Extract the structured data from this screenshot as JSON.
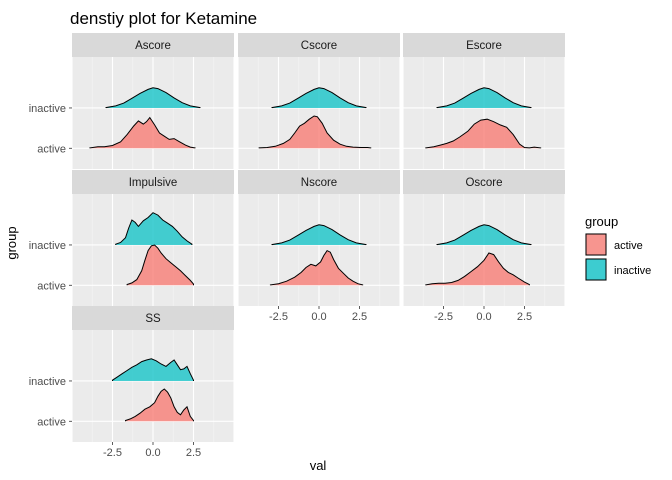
{
  "chart_data": {
    "type": "ridgeline",
    "title": "denstiy plot for Ketamine",
    "xlabel": "val",
    "ylabel": "group",
    "x_ticks": [
      -2.5,
      0,
      2.5
    ],
    "x_tick_labels": [
      "-2.5",
      "0.0",
      "2.5"
    ],
    "y_categories": [
      "active",
      "inactive"
    ],
    "xlim": [
      -5,
      5
    ],
    "grid": true,
    "legend": {
      "title": "group",
      "position": "right",
      "entries": [
        {
          "label": "active",
          "color": "#F8766D"
        },
        {
          "label": "inactive",
          "color": "#00BFC4"
        }
      ]
    },
    "facets": [
      {
        "name": "Ascore",
        "series": [
          {
            "group": "inactive",
            "x": [
              -2.9,
              -2.3,
              -1.8,
              -1.3,
              -0.8,
              -0.3,
              0.0,
              0.3,
              0.8,
              1.3,
              1.8,
              2.3,
              2.9
            ],
            "density": [
              0.01,
              0.05,
              0.12,
              0.24,
              0.36,
              0.46,
              0.5,
              0.48,
              0.38,
              0.25,
              0.13,
              0.05,
              0.01
            ]
          },
          {
            "group": "active",
            "x": [
              -3.9,
              -3.4,
              -3.0,
              -2.5,
              -2.0,
              -1.6,
              -1.2,
              -0.9,
              -0.6,
              -0.4,
              -0.2,
              0.1,
              0.4,
              0.7,
              1.0,
              1.3,
              1.6,
              2.0,
              2.3,
              2.6
            ],
            "density": [
              0.01,
              0.04,
              0.04,
              0.07,
              0.16,
              0.34,
              0.55,
              0.68,
              0.6,
              0.66,
              0.76,
              0.58,
              0.38,
              0.3,
              0.22,
              0.24,
              0.17,
              0.08,
              0.03,
              0.01
            ]
          }
        ]
      },
      {
        "name": "Cscore",
        "series": [
          {
            "group": "inactive",
            "x": [
              -2.9,
              -2.3,
              -1.8,
              -1.3,
              -0.8,
              -0.3,
              0.0,
              0.3,
              0.8,
              1.3,
              1.8,
              2.3,
              2.9
            ],
            "density": [
              0.01,
              0.05,
              0.12,
              0.24,
              0.36,
              0.46,
              0.5,
              0.48,
              0.38,
              0.25,
              0.13,
              0.05,
              0.01
            ]
          },
          {
            "group": "active",
            "x": [
              -3.7,
              -3.2,
              -2.7,
              -2.2,
              -1.8,
              -1.5,
              -1.2,
              -0.9,
              -0.6,
              -0.3,
              -0.1,
              0.2,
              0.5,
              0.9,
              1.3,
              1.7,
              2.1,
              2.6,
              3.0,
              3.2
            ],
            "density": [
              0.01,
              0.02,
              0.05,
              0.12,
              0.22,
              0.38,
              0.55,
              0.62,
              0.72,
              0.8,
              0.78,
              0.62,
              0.38,
              0.2,
              0.1,
              0.05,
              0.03,
              0.02,
              0.02,
              0.01
            ]
          }
        ]
      },
      {
        "name": "Escore",
        "series": [
          {
            "group": "inactive",
            "x": [
              -2.9,
              -2.3,
              -1.8,
              -1.3,
              -0.8,
              -0.3,
              0.0,
              0.3,
              0.8,
              1.3,
              1.8,
              2.3,
              2.9
            ],
            "density": [
              0.01,
              0.05,
              0.12,
              0.24,
              0.36,
              0.46,
              0.5,
              0.48,
              0.38,
              0.25,
              0.13,
              0.05,
              0.01
            ]
          },
          {
            "group": "active",
            "x": [
              -3.6,
              -3.1,
              -2.7,
              -2.3,
              -1.9,
              -1.5,
              -1.0,
              -0.6,
              -0.2,
              0.2,
              0.6,
              1.0,
              1.4,
              1.8,
              2.2,
              2.5,
              2.8,
              3.1,
              3.5
            ],
            "density": [
              0.01,
              0.04,
              0.08,
              0.12,
              0.18,
              0.28,
              0.42,
              0.6,
              0.7,
              0.72,
              0.66,
              0.58,
              0.52,
              0.34,
              0.1,
              0.02,
              0.01,
              0.03,
              0.01
            ]
          }
        ]
      },
      {
        "name": "Impulsive",
        "series": [
          {
            "group": "inactive",
            "x": [
              -2.3,
              -2.0,
              -1.7,
              -1.5,
              -1.3,
              -1.1,
              -0.9,
              -0.6,
              -0.3,
              0.0,
              0.3,
              0.6,
              0.9,
              1.2,
              1.5,
              1.8,
              2.1,
              2.4
            ],
            "density": [
              0.02,
              0.06,
              0.18,
              0.42,
              0.62,
              0.56,
              0.46,
              0.6,
              0.68,
              0.8,
              0.74,
              0.62,
              0.54,
              0.46,
              0.34,
              0.2,
              0.1,
              0.02
            ]
          },
          {
            "group": "active",
            "x": [
              -1.6,
              -1.3,
              -1.0,
              -0.7,
              -0.5,
              -0.3,
              -0.1,
              0.1,
              0.3,
              0.5,
              0.8,
              1.1,
              1.4,
              1.7,
              2.0,
              2.3,
              2.5
            ],
            "density": [
              0.02,
              0.06,
              0.14,
              0.36,
              0.62,
              0.86,
              0.98,
              1.0,
              0.92,
              0.8,
              0.66,
              0.56,
              0.46,
              0.36,
              0.24,
              0.12,
              0.03
            ]
          }
        ]
      },
      {
        "name": "Nscore",
        "series": [
          {
            "group": "inactive",
            "x": [
              -2.9,
              -2.3,
              -1.8,
              -1.3,
              -0.8,
              -0.3,
              0.0,
              0.3,
              0.8,
              1.3,
              1.8,
              2.3,
              2.9
            ],
            "density": [
              0.01,
              0.05,
              0.12,
              0.24,
              0.36,
              0.46,
              0.5,
              0.48,
              0.38,
              0.25,
              0.13,
              0.05,
              0.01
            ]
          },
          {
            "group": "active",
            "x": [
              -3.0,
              -2.5,
              -2.0,
              -1.5,
              -1.1,
              -0.8,
              -0.5,
              -0.2,
              0.1,
              0.3,
              0.5,
              0.7,
              0.9,
              1.2,
              1.5,
              1.8,
              2.1,
              2.4,
              2.7
            ],
            "density": [
              0.01,
              0.04,
              0.1,
              0.2,
              0.32,
              0.44,
              0.52,
              0.48,
              0.58,
              0.74,
              0.86,
              0.82,
              0.64,
              0.42,
              0.3,
              0.18,
              0.1,
              0.04,
              0.01
            ]
          }
        ]
      },
      {
        "name": "Oscore",
        "series": [
          {
            "group": "inactive",
            "x": [
              -2.9,
              -2.3,
              -1.8,
              -1.3,
              -0.8,
              -0.3,
              0.0,
              0.3,
              0.8,
              1.3,
              1.8,
              2.3,
              2.9
            ],
            "density": [
              0.01,
              0.05,
              0.12,
              0.24,
              0.36,
              0.46,
              0.5,
              0.48,
              0.38,
              0.25,
              0.13,
              0.05,
              0.01
            ]
          },
          {
            "group": "active",
            "x": [
              -3.6,
              -3.2,
              -2.8,
              -2.4,
              -2.0,
              -1.6,
              -1.2,
              -0.8,
              -0.4,
              0.0,
              0.3,
              0.6,
              0.9,
              1.2,
              1.5,
              1.8,
              2.1,
              2.5,
              2.8
            ],
            "density": [
              0.01,
              0.04,
              0.05,
              0.05,
              0.07,
              0.12,
              0.22,
              0.34,
              0.46,
              0.62,
              0.8,
              0.76,
              0.58,
              0.42,
              0.32,
              0.26,
              0.18,
              0.08,
              0.02
            ]
          }
        ]
      },
      {
        "name": "SS",
        "series": [
          {
            "group": "inactive",
            "x": [
              -2.5,
              -2.2,
              -1.9,
              -1.6,
              -1.3,
              -1.0,
              -0.7,
              -0.4,
              -0.1,
              0.2,
              0.5,
              0.8,
              1.1,
              1.3,
              1.5,
              1.7,
              1.9,
              2.1,
              2.3,
              2.5
            ],
            "density": [
              0.02,
              0.1,
              0.18,
              0.26,
              0.34,
              0.4,
              0.48,
              0.52,
              0.55,
              0.5,
              0.42,
              0.36,
              0.46,
              0.52,
              0.4,
              0.28,
              0.3,
              0.36,
              0.18,
              0.02
            ]
          },
          {
            "group": "active",
            "x": [
              -1.7,
              -1.4,
              -1.1,
              -0.8,
              -0.5,
              -0.2,
              0.1,
              0.3,
              0.5,
              0.7,
              0.9,
              1.1,
              1.3,
              1.5,
              1.7,
              1.9,
              2.1,
              2.3,
              2.5
            ],
            "density": [
              0.02,
              0.06,
              0.12,
              0.2,
              0.3,
              0.36,
              0.46,
              0.62,
              0.74,
              0.8,
              0.72,
              0.58,
              0.36,
              0.22,
              0.16,
              0.28,
              0.36,
              0.12,
              0.02
            ]
          }
        ]
      }
    ]
  }
}
